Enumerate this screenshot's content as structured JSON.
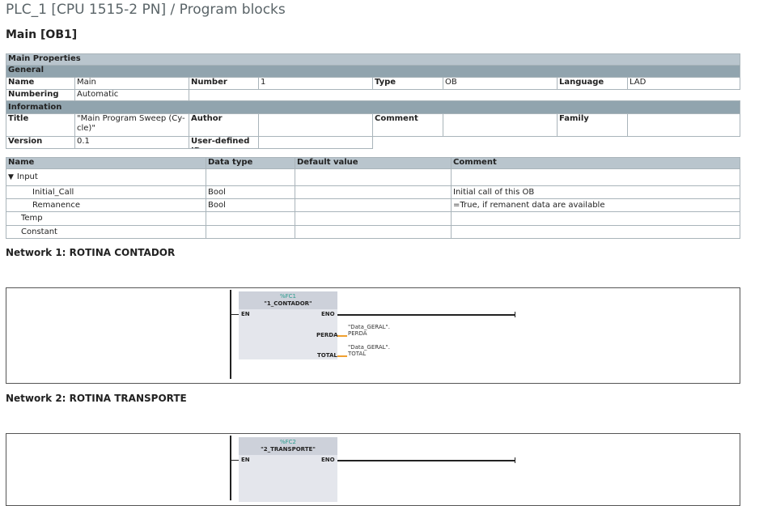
{
  "header": {
    "title": "PLC_1 [CPU 1515-2 PN] / Program blocks",
    "block": "Main [OB1]"
  },
  "properties": {
    "title": "Main Properties",
    "general": "General",
    "information": "Information",
    "name_label": "Name",
    "name": "Main",
    "number_label": "Number",
    "number": "1",
    "type_label": "Type",
    "type": "OB",
    "language_label": "Language",
    "language": "LAD",
    "numbering_label": "Numbering",
    "numbering": "Automatic",
    "title_label": "Title",
    "title_value": "\"Main Program Sweep (Cy-cle)\"",
    "author_label": "Author",
    "author": "",
    "comment_label": "Comment",
    "comment": "",
    "family_label": "Family",
    "family": "",
    "version_label": "Version",
    "version": "0.1",
    "userid_label": "User-defined ID",
    "userid": ""
  },
  "interface": {
    "headers": [
      "Name",
      "Data type",
      "Default value",
      "Comment"
    ],
    "rows": [
      {
        "name": "Input",
        "type": "",
        "default": "",
        "comment": ""
      },
      {
        "name": "Initial_Call",
        "type": "Bool",
        "default": "",
        "comment": "Initial call of this OB"
      },
      {
        "name": "Remanence",
        "type": "Bool",
        "default": "",
        "comment": "=True, if remanent data are available"
      },
      {
        "name": "Temp",
        "type": "",
        "default": "",
        "comment": ""
      },
      {
        "name": "Constant",
        "type": "",
        "default": "",
        "comment": ""
      }
    ]
  },
  "networks": [
    {
      "title": "Network 1: ROTINA CONTADOR",
      "block_addr": "%FC1",
      "block_name": "\"1_CONTADOR\"",
      "en": "EN",
      "eno": "ENO",
      "outputs": [
        {
          "pin": "PERDA",
          "op1": "\"Data_GERAL\".",
          "op2": "PERDA"
        },
        {
          "pin": "TOTAL",
          "op1": "\"Data_GERAL\".",
          "op2": "TOTAL"
        }
      ]
    },
    {
      "title": "Network 2: ROTINA TRANSPORTE",
      "block_addr": "%FC2",
      "block_name": "\"2_TRANSPORTE\"",
      "en": "EN",
      "eno": "ENO"
    }
  ],
  "colors": {
    "header": "#b9c5cd",
    "section": "#91a4ae",
    "block_addr": "#2a9d8f",
    "output_wire": "#f0a030"
  }
}
